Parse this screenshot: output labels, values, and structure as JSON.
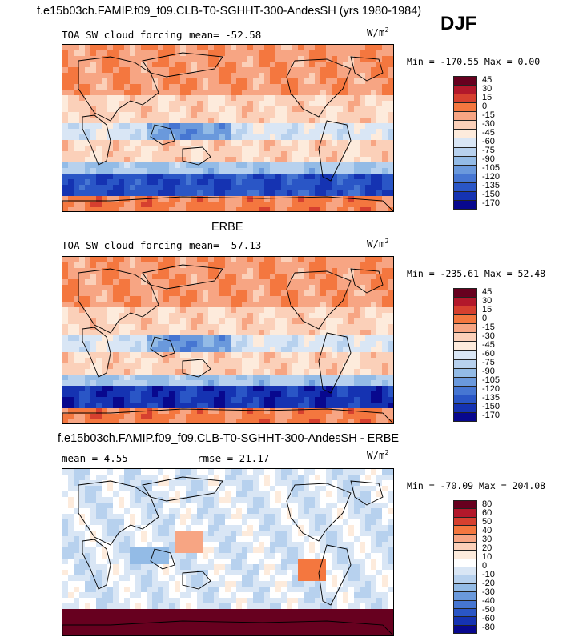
{
  "main_title": "f.e15b03ch.FAMIP.f09_f09.CLB-T0-SGHHT-300-AndesSH (yrs 1980-1984)",
  "season": "DJF",
  "units_base": "W/m",
  "units_exp": "2",
  "panels": [
    {
      "header": "",
      "variable_label": "TOA SW cloud forcing",
      "stats_text": "mean=  -52.58",
      "minmax_text": "Min = -170.55  Max =    0.00",
      "colorbar_colors": [
        "#67001f",
        "#b2182b",
        "#d6402f",
        "#f4773f",
        "#f7a583",
        "#fbd0b9",
        "#fdebdc",
        "#d9e6f5",
        "#b7d1ee",
        "#93bbe6",
        "#6a99dc",
        "#4676d2",
        "#2a56c6",
        "#1533b2",
        "#08088e"
      ],
      "colorbar_labels": [
        "45",
        "30",
        "15",
        "0",
        "-15",
        "-30",
        "-45",
        "-60",
        "-75",
        "-90",
        "-105",
        "-120",
        "-135",
        "-150",
        "-170"
      ]
    },
    {
      "header": "ERBE",
      "variable_label": "TOA SW cloud forcing",
      "stats_text": "mean=  -57.13",
      "minmax_text": "Min = -235.61  Max =   52.48",
      "colorbar_colors": [
        "#67001f",
        "#b2182b",
        "#d6402f",
        "#f4773f",
        "#f7a583",
        "#fbd0b9",
        "#fdebdc",
        "#d9e6f5",
        "#b7d1ee",
        "#93bbe6",
        "#6a99dc",
        "#4676d2",
        "#2a56c6",
        "#1533b2",
        "#08088e"
      ],
      "colorbar_labels": [
        "45",
        "30",
        "15",
        "0",
        "-15",
        "-30",
        "-45",
        "-60",
        "-75",
        "-90",
        "-105",
        "-120",
        "-135",
        "-150",
        "-170"
      ]
    },
    {
      "header": "f.e15b03ch.FAMIP.f09_f09.CLB-T0-SGHHT-300-AndesSH - ERBE",
      "variable_label": "",
      "stats_text": "mean =    4.55",
      "rmse_text": "rmse =  21.17",
      "minmax_text": "Min = -70.09  Max = 204.08",
      "colorbar_colors": [
        "#67001f",
        "#b2182b",
        "#d6402f",
        "#f4773f",
        "#f7a583",
        "#fbd0b9",
        "#fdebdc",
        "#ffffff",
        "#d9e6f5",
        "#b7d1ee",
        "#93bbe6",
        "#6a99dc",
        "#4676d2",
        "#2a56c6",
        "#1533b2",
        "#08088e"
      ],
      "colorbar_labels": [
        "80",
        "60",
        "50",
        "40",
        "30",
        "20",
        "10",
        "0",
        "-10",
        "-20",
        "-30",
        "-40",
        "-50",
        "-60",
        "-80"
      ]
    }
  ],
  "chart_data": [
    {
      "type": "heatmap",
      "title": "TOA SW cloud forcing",
      "subtitle": "f.e15b03ch.FAMIP.f09_f09.CLB-T0-SGHHT-300-AndesSH (yrs 1980-1984), DJF",
      "units": "W/m2",
      "mean": -52.58,
      "min": -170.55,
      "max": 0.0,
      "contour_levels": [
        45,
        30,
        15,
        0,
        -15,
        -30,
        -45,
        -60,
        -75,
        -90,
        -105,
        -120,
        -135,
        -150,
        -170
      ],
      "legend": "right"
    },
    {
      "type": "heatmap",
      "title": "TOA SW cloud forcing",
      "subtitle": "ERBE, DJF",
      "units": "W/m2",
      "mean": -57.13,
      "min": -235.61,
      "max": 52.48,
      "contour_levels": [
        45,
        30,
        15,
        0,
        -15,
        -30,
        -45,
        -60,
        -75,
        -90,
        -105,
        -120,
        -135,
        -150,
        -170
      ],
      "legend": "right"
    },
    {
      "type": "heatmap",
      "title": "f.e15b03ch.FAMIP.f09_f09.CLB-T0-SGHHT-300-AndesSH - ERBE",
      "units": "W/m2",
      "mean": 4.55,
      "rmse": 21.17,
      "min": -70.09,
      "max": 204.08,
      "contour_levels": [
        80,
        60,
        50,
        40,
        30,
        20,
        10,
        0,
        -10,
        -20,
        -30,
        -40,
        -50,
        -60,
        -80
      ],
      "legend": "right"
    }
  ]
}
